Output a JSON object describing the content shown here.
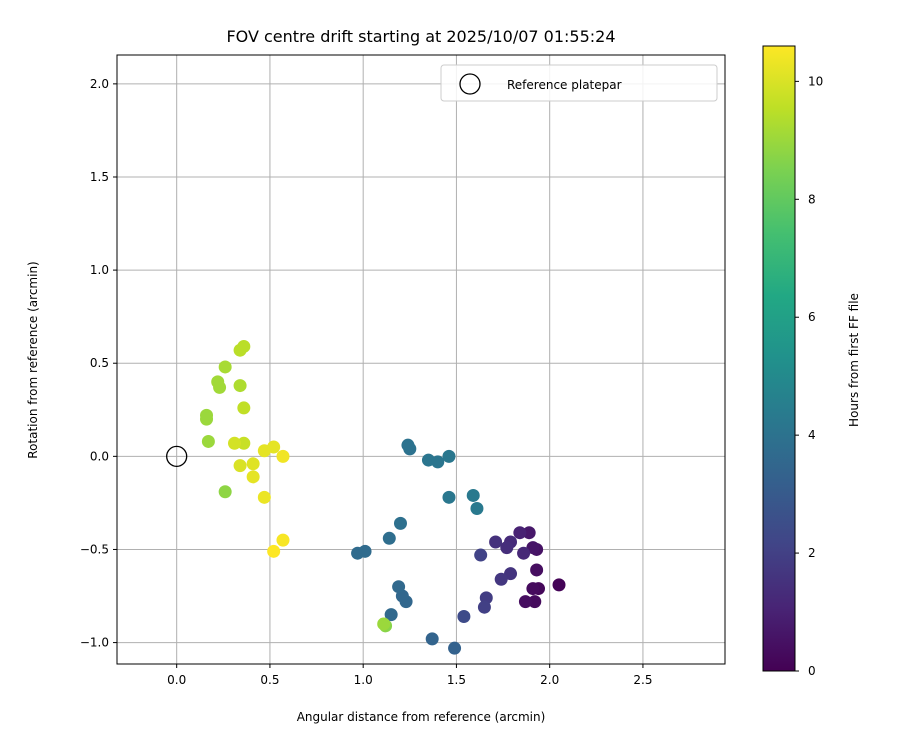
{
  "chart_data": {
    "type": "scatter",
    "title": "FOV centre drift starting at 2025/10/07 01:55:24",
    "xlabel": "Angular distance from reference (arcmin)",
    "ylabel": "Rotation from reference (arcmin)",
    "xlim": [
      -0.32,
      2.94
    ],
    "ylim": [
      -1.115,
      2.155
    ],
    "xticks": [
      "0.0",
      "0.5",
      "1.0",
      "1.5",
      "2.0",
      "2.5"
    ],
    "yticks": [
      "−1.0",
      "−0.5",
      "0.0",
      "0.5",
      "1.0",
      "1.5",
      "2.0"
    ],
    "grid": true,
    "legend": {
      "position": "top-right",
      "entries": [
        "Reference platepar"
      ]
    },
    "reference_point": {
      "x": 0.0,
      "y": 0.0
    },
    "colorbar": {
      "label": "Hours from first FF file",
      "range": [
        0,
        10.6
      ],
      "ticks": [
        "0",
        "2",
        "4",
        "6",
        "8",
        "10"
      ],
      "colormap": "viridis"
    },
    "points": [
      {
        "x": 2.05,
        "y": -0.69,
        "h": 0.1
      },
      {
        "x": 1.94,
        "y": -0.71,
        "h": 0.2
      },
      {
        "x": 1.91,
        "y": -0.71,
        "h": 0.3
      },
      {
        "x": 1.92,
        "y": -0.78,
        "h": 0.3
      },
      {
        "x": 1.87,
        "y": -0.78,
        "h": 0.4
      },
      {
        "x": 1.93,
        "y": -0.61,
        "h": 0.4
      },
      {
        "x": 1.93,
        "y": -0.5,
        "h": 0.5
      },
      {
        "x": 1.91,
        "y": -0.49,
        "h": 0.6
      },
      {
        "x": 1.89,
        "y": -0.41,
        "h": 0.7
      },
      {
        "x": 1.84,
        "y": -0.41,
        "h": 1.0
      },
      {
        "x": 1.86,
        "y": -0.52,
        "h": 1.2
      },
      {
        "x": 1.79,
        "y": -0.46,
        "h": 1.3
      },
      {
        "x": 1.77,
        "y": -0.49,
        "h": 1.4
      },
      {
        "x": 1.71,
        "y": -0.46,
        "h": 1.5
      },
      {
        "x": 1.79,
        "y": -0.63,
        "h": 1.6
      },
      {
        "x": 1.74,
        "y": -0.66,
        "h": 1.7
      },
      {
        "x": 1.66,
        "y": -0.76,
        "h": 1.9
      },
      {
        "x": 1.65,
        "y": -0.81,
        "h": 2.0
      },
      {
        "x": 1.63,
        "y": -0.53,
        "h": 2.1
      },
      {
        "x": 1.54,
        "y": -0.86,
        "h": 2.4
      },
      {
        "x": 1.49,
        "y": -1.03,
        "h": 3.3
      },
      {
        "x": 1.37,
        "y": -0.98,
        "h": 3.4
      },
      {
        "x": 1.23,
        "y": -0.78,
        "h": 3.5
      },
      {
        "x": 1.21,
        "y": -0.75,
        "h": 3.5
      },
      {
        "x": 1.19,
        "y": -0.7,
        "h": 3.6
      },
      {
        "x": 1.15,
        "y": -0.85,
        "h": 3.6
      },
      {
        "x": 0.97,
        "y": -0.52,
        "h": 3.7
      },
      {
        "x": 1.01,
        "y": -0.51,
        "h": 3.7
      },
      {
        "x": 1.14,
        "y": -0.44,
        "h": 3.8
      },
      {
        "x": 1.2,
        "y": -0.36,
        "h": 3.9
      },
      {
        "x": 1.24,
        "y": 0.06,
        "h": 4.0
      },
      {
        "x": 1.25,
        "y": 0.04,
        "h": 4.0
      },
      {
        "x": 1.35,
        "y": -0.02,
        "h": 4.1
      },
      {
        "x": 1.4,
        "y": -0.03,
        "h": 4.1
      },
      {
        "x": 1.46,
        "y": 0.0,
        "h": 4.2
      },
      {
        "x": 1.46,
        "y": -0.22,
        "h": 4.2
      },
      {
        "x": 1.59,
        "y": -0.21,
        "h": 4.3
      },
      {
        "x": 1.61,
        "y": -0.28,
        "h": 4.3
      },
      {
        "x": 1.12,
        "y": -0.91,
        "h": 8.7
      },
      {
        "x": 1.11,
        "y": -0.9,
        "h": 9.0
      },
      {
        "x": 0.36,
        "y": 0.59,
        "h": 9.5
      },
      {
        "x": 0.34,
        "y": 0.57,
        "h": 9.5
      },
      {
        "x": 0.26,
        "y": 0.48,
        "h": 9.2
      },
      {
        "x": 0.22,
        "y": 0.4,
        "h": 9.1
      },
      {
        "x": 0.23,
        "y": 0.37,
        "h": 9.1
      },
      {
        "x": 0.34,
        "y": 0.38,
        "h": 9.3
      },
      {
        "x": 0.16,
        "y": 0.22,
        "h": 9.0
      },
      {
        "x": 0.16,
        "y": 0.2,
        "h": 9.0
      },
      {
        "x": 0.36,
        "y": 0.26,
        "h": 9.6
      },
      {
        "x": 0.17,
        "y": 0.08,
        "h": 9.0
      },
      {
        "x": 0.36,
        "y": 0.07,
        "h": 9.7
      },
      {
        "x": 0.31,
        "y": 0.07,
        "h": 9.9
      },
      {
        "x": 0.26,
        "y": -0.19,
        "h": 8.8
      },
      {
        "x": 0.34,
        "y": -0.05,
        "h": 10.0
      },
      {
        "x": 0.41,
        "y": -0.04,
        "h": 10.1
      },
      {
        "x": 0.41,
        "y": -0.11,
        "h": 10.2
      },
      {
        "x": 0.47,
        "y": 0.03,
        "h": 10.2
      },
      {
        "x": 0.52,
        "y": 0.05,
        "h": 10.2
      },
      {
        "x": 0.57,
        "y": 0.0,
        "h": 10.4
      },
      {
        "x": 0.47,
        "y": -0.22,
        "h": 10.3
      },
      {
        "x": 0.57,
        "y": -0.45,
        "h": 10.5
      },
      {
        "x": 0.52,
        "y": -0.51,
        "h": 10.6
      }
    ]
  }
}
